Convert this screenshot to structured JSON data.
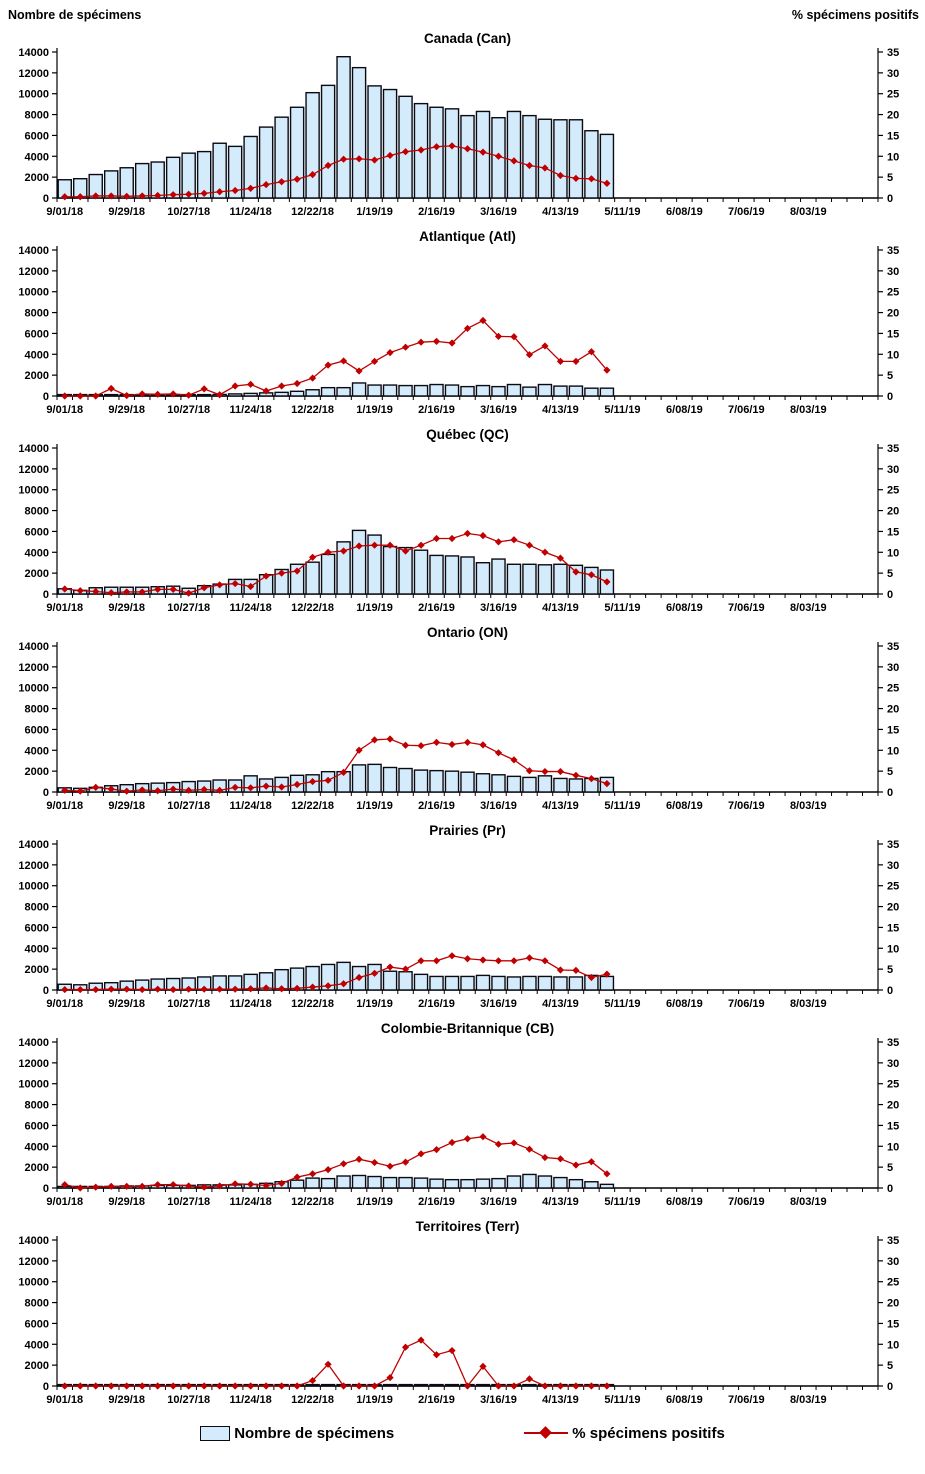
{
  "header": {
    "left_axis_title": "Nombre de spécimens",
    "right_axis_title": "% spécimens positifs"
  },
  "legend": {
    "bars_label": "Nombre de spécimens",
    "line_label": "% spécimens positifs"
  },
  "colors": {
    "bar_fill": "#d4ebfb",
    "bar_border": "#0a0a14",
    "line": "#c00000",
    "axis": "#000000",
    "text": "#000000"
  },
  "axes": {
    "left_ticks": [
      0,
      2000,
      4000,
      6000,
      8000,
      10000,
      12000,
      14000
    ],
    "left_max": 14000,
    "right_ticks": [
      0,
      5,
      10,
      15,
      20,
      25,
      30,
      35
    ],
    "right_max": 35,
    "x_labels": [
      "9/01/18",
      "9/29/18",
      "10/27/18",
      "11/24/18",
      "12/22/18",
      "1/19/19",
      "2/16/19",
      "3/16/19",
      "4/13/19",
      "5/11/19",
      "6/08/19",
      "7/06/19",
      "8/03/19"
    ],
    "x_label_every_weeks": 4,
    "weeks_total": 53,
    "data_weeks": 36,
    "first_week": "9/01/18",
    "last_data_week": "5/04/19"
  },
  "chart_data": [
    {
      "type": "bar+line",
      "title": "Canada (Can)",
      "series_bar_name": "Nombre de spécimens",
      "series_line_name": "% spécimens positifs",
      "specimens": [
        1750,
        1850,
        2250,
        2600,
        2900,
        3300,
        3450,
        3900,
        4300,
        4450,
        5250,
        4950,
        5900,
        6800,
        7750,
        8700,
        10100,
        10800,
        13550,
        12500,
        10750,
        10400,
        9750,
        9050,
        8700,
        8550,
        7900,
        8300,
        7700,
        8300,
        7900,
        7550,
        7500,
        7500,
        6450,
        6100
      ],
      "pct_positive": [
        0.3,
        0.3,
        0.5,
        0.5,
        0.4,
        0.5,
        0.6,
        0.8,
        0.9,
        1.1,
        1.5,
        1.8,
        2.3,
        3.2,
        3.9,
        4.5,
        5.6,
        7.8,
        9.3,
        9.4,
        9.1,
        10.2,
        11.1,
        11.5,
        12.3,
        12.5,
        11.8,
        11.0,
        10.0,
        8.9,
        7.8,
        7.2,
        5.4,
        4.7,
        4.6,
        3.5
      ]
    },
    {
      "type": "bar+line",
      "title": "Atlantique (Atl)",
      "series_bar_name": "Nombre de spécimens",
      "series_line_name": "% spécimens positifs",
      "specimens": [
        50,
        60,
        60,
        70,
        80,
        80,
        90,
        100,
        100,
        120,
        150,
        200,
        250,
        300,
        350,
        450,
        600,
        800,
        800,
        1250,
        1050,
        1050,
        1000,
        1000,
        1100,
        1050,
        900,
        1000,
        900,
        1100,
        850,
        1100,
        950,
        950,
        750,
        750
      ],
      "pct_positive": [
        0,
        0,
        0,
        1.8,
        0.1,
        0.5,
        0.4,
        0.5,
        0.2,
        1.7,
        0.3,
        2.4,
        2.8,
        1.2,
        2.4,
        3.0,
        4.3,
        7.4,
        8.4,
        6.0,
        8.3,
        10.4,
        11.7,
        12.9,
        13.1,
        12.7,
        16.2,
        18.1,
        14.3,
        14.2,
        9.9,
        12.0,
        8.3,
        8.3,
        10.6,
        6.2
      ]
    },
    {
      "type": "bar+line",
      "title": "Québec (QC)",
      "series_bar_name": "Nombre de spécimens",
      "series_line_name": "% spécimens positifs",
      "specimens": [
        500,
        350,
        600,
        650,
        650,
        650,
        700,
        750,
        550,
        800,
        950,
        1400,
        1400,
        1850,
        2350,
        2850,
        3050,
        3800,
        5000,
        6100,
        5650,
        4550,
        4450,
        4200,
        3700,
        3650,
        3550,
        3000,
        3350,
        2850,
        2850,
        2800,
        2850,
        2750,
        2550,
        2300
      ],
      "pct_positive": [
        1.2,
        0.8,
        0.6,
        0.3,
        0.5,
        0.5,
        1.1,
        1.1,
        0.2,
        1.5,
        2.2,
        2.5,
        1.8,
        4.3,
        5.0,
        5.5,
        8.8,
        10.0,
        10.3,
        11.5,
        11.7,
        11.7,
        10.3,
        11.7,
        13.3,
        13.3,
        14.5,
        14.0,
        12.5,
        13.0,
        11.7,
        10.0,
        8.6,
        5.3,
        4.6,
        2.9
      ]
    },
    {
      "type": "bar+line",
      "title": "Ontario (ON)",
      "series_bar_name": "Nombre de spécimens",
      "series_line_name": "% spécimens positifs",
      "specimens": [
        400,
        350,
        450,
        600,
        700,
        800,
        850,
        900,
        1000,
        1050,
        1150,
        1150,
        1550,
        1250,
        1400,
        1600,
        1650,
        1950,
        1950,
        2600,
        2650,
        2350,
        2250,
        2100,
        2050,
        2000,
        1900,
        1750,
        1650,
        1500,
        1400,
        1550,
        1300,
        1250,
        1300,
        1400
      ],
      "pct_positive": [
        0.4,
        0.2,
        1.1,
        0.7,
        0.2,
        0.5,
        0.3,
        0.7,
        0.4,
        0.6,
        0.4,
        1.1,
        1.0,
        1.4,
        1.2,
        1.8,
        2.5,
        2.8,
        4.7,
        10.0,
        12.5,
        12.7,
        11.2,
        11.1,
        11.9,
        11.4,
        11.9,
        11.3,
        9.4,
        7.7,
        5.1,
        4.9,
        4.9,
        4.0,
        3.2,
        2.0
      ]
    },
    {
      "type": "bar+line",
      "title": "Prairies (Pr)",
      "series_bar_name": "Nombre de spécimens",
      "series_line_name": "% spécimens positifs",
      "specimens": [
        550,
        500,
        650,
        700,
        850,
        950,
        1050,
        1100,
        1150,
        1250,
        1350,
        1350,
        1500,
        1650,
        1950,
        2100,
        2250,
        2450,
        2650,
        2250,
        2450,
        1800,
        1750,
        1500,
        1300,
        1300,
        1300,
        1400,
        1300,
        1250,
        1300,
        1300,
        1250,
        1250,
        1400,
        1300
      ],
      "pct_positive": [
        0.1,
        0.1,
        0.1,
        0.2,
        0.2,
        0.1,
        0.2,
        0.1,
        0.2,
        0.2,
        0.2,
        0.2,
        0.3,
        0.5,
        0.3,
        0.4,
        0.7,
        1.0,
        1.5,
        3.0,
        4.0,
        5.5,
        5.0,
        7.0,
        7.0,
        8.2,
        7.5,
        7.2,
        7.0,
        7.0,
        7.7,
        7.0,
        4.8,
        4.7,
        3.0,
        3.8
      ]
    },
    {
      "type": "bar+line",
      "title": "Colombie-Britannique (CB)",
      "series_bar_name": "Nombre de spécimens",
      "series_line_name": "% spécimens positifs",
      "specimens": [
        150,
        150,
        150,
        150,
        200,
        200,
        250,
        250,
        250,
        300,
        300,
        300,
        350,
        450,
        600,
        750,
        950,
        900,
        1150,
        1200,
        1100,
        1000,
        1000,
        950,
        850,
        800,
        800,
        850,
        900,
        1150,
        1300,
        1150,
        1000,
        800,
        600,
        350
      ],
      "pct_positive": [
        0.8,
        0.0,
        0.2,
        0.4,
        0.4,
        0.4,
        0.8,
        0.8,
        0.5,
        0.2,
        0.5,
        1.0,
        0.9,
        0.6,
        1.1,
        2.6,
        3.4,
        4.4,
        5.8,
        6.9,
        6.1,
        5.2,
        6.2,
        8.2,
        9.2,
        10.9,
        11.8,
        12.3,
        10.5,
        10.8,
        9.3,
        7.3,
        7.0,
        5.5,
        6.3,
        3.4
      ]
    },
    {
      "type": "bar+line",
      "title": "Territoires (Terr)",
      "series_bar_name": "Nombre de spécimens",
      "series_line_name": "% spécimens positifs",
      "specimens": [
        30,
        30,
        30,
        30,
        30,
        30,
        30,
        30,
        30,
        30,
        30,
        30,
        30,
        30,
        30,
        30,
        40,
        40,
        30,
        30,
        30,
        40,
        50,
        50,
        50,
        50,
        30,
        40,
        30,
        30,
        30,
        30,
        30,
        30,
        30,
        30
      ],
      "pct_positive": [
        0,
        0,
        0,
        0,
        0,
        0,
        0,
        0,
        0,
        0,
        0,
        0,
        0,
        0,
        0,
        0,
        1.3,
        5.2,
        0,
        0,
        0,
        2.0,
        9.3,
        11.0,
        7.5,
        8.5,
        0,
        4.7,
        0,
        0,
        1.7,
        0,
        0,
        0,
        0,
        0
      ]
    }
  ]
}
